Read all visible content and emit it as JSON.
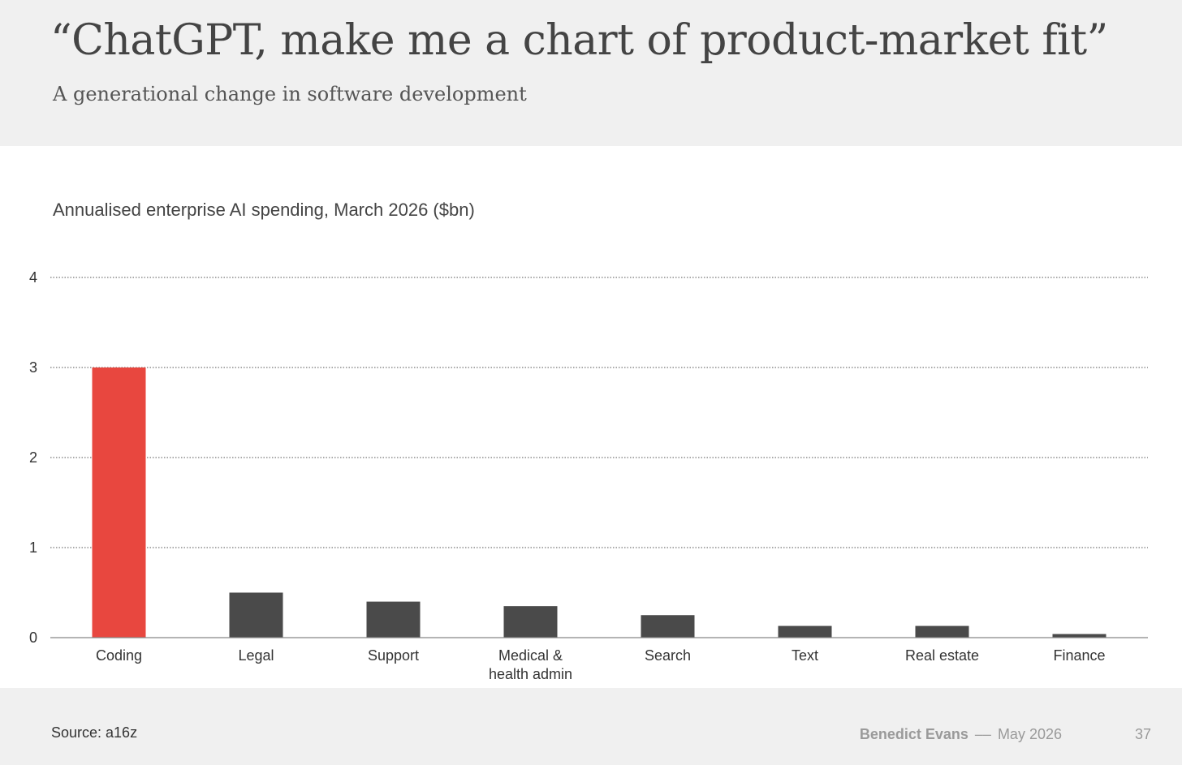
{
  "header": {
    "title": "“ChatGPT, make me a chart of product-market fit”",
    "subtitle": "A generational change in software development"
  },
  "chart_data": {
    "type": "bar",
    "title": "Annualised enterprise AI spending, March 2026 ($bn)",
    "categories": [
      [
        "Coding"
      ],
      [
        "Legal"
      ],
      [
        "Support"
      ],
      [
        "Medical &",
        "health admin"
      ],
      [
        "Search"
      ],
      [
        "Text"
      ],
      [
        "Real estate"
      ],
      [
        "Finance"
      ]
    ],
    "values": [
      3.0,
      0.5,
      0.4,
      0.35,
      0.25,
      0.13,
      0.13,
      0.04
    ],
    "highlight_index": 0,
    "ylim": [
      0,
      4
    ],
    "yticks": [
      0,
      1,
      2,
      3,
      4
    ],
    "grid": true,
    "colors": {
      "highlight": "#e8473f",
      "bar": "#4a4a4a",
      "grid": "#555555",
      "axis": "#888888"
    }
  },
  "footer": {
    "source": "Source: a16z",
    "author": "Benedict Evans",
    "separator": "––",
    "date": "May 2026",
    "page": "37"
  }
}
